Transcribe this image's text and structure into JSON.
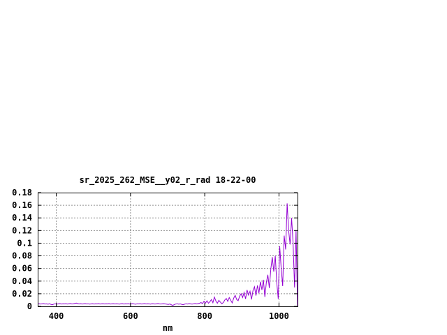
{
  "chart_data": {
    "type": "line",
    "title": "sr_2025_262_MSE__y02_r_rad 18-22-00",
    "xlabel": "nm",
    "ylabel": "",
    "xlim": [
      350,
      1050
    ],
    "ylim": [
      0,
      0.18
    ],
    "xticks": [
      400,
      600,
      800,
      1000
    ],
    "xtick_labels": [
      "400",
      "600",
      "800",
      "1000"
    ],
    "yticks": [
      0,
      0.02,
      0.04,
      0.06,
      0.08,
      0.1,
      0.12,
      0.14,
      0.16,
      0.18
    ],
    "ytick_labels": [
      "0",
      "0.02",
      "0.04",
      "0.06",
      "0.08",
      "0.1",
      "0.12",
      "0.14",
      "0.16",
      "0.18"
    ],
    "grid": true,
    "legend": "none",
    "line_color": "#9400d3",
    "grid_color": "#909090",
    "axis_color": "#000000",
    "background": "#ffffff",
    "x_start": 350,
    "x_step": 4,
    "y": [
      0.004,
      0.0043,
      0.0038,
      0.0041,
      0.0044,
      0.0037,
      0.004,
      0.0035,
      0.0042,
      0.003,
      0.0027,
      0.0038,
      0.0042,
      0.0036,
      0.0041,
      0.0044,
      0.0038,
      0.0042,
      0.004,
      0.0043,
      0.0037,
      0.0041,
      0.0045,
      0.0039,
      0.0042,
      0.0047,
      0.0052,
      0.0044,
      0.004,
      0.0043,
      0.0038,
      0.0041,
      0.0044,
      0.0039,
      0.0042,
      0.0036,
      0.004,
      0.0043,
      0.0038,
      0.0042,
      0.004,
      0.0044,
      0.0037,
      0.0041,
      0.0043,
      0.0039,
      0.0042,
      0.004,
      0.0044,
      0.0038,
      0.0041,
      0.0043,
      0.0039,
      0.0042,
      0.004,
      0.0036,
      0.0041,
      0.0044,
      0.0038,
      0.0042,
      0.004,
      0.0043,
      0.0037,
      0.0041,
      0.0044,
      0.0039,
      0.0035,
      0.0042,
      0.004,
      0.0043,
      0.0038,
      0.0041,
      0.0044,
      0.0039,
      0.0042,
      0.004,
      0.0036,
      0.0043,
      0.0041,
      0.0038,
      0.0042,
      0.0045,
      0.004,
      0.0037,
      0.0041,
      0.0043,
      0.0039,
      0.0035,
      0.003,
      0.0038,
      0.0025,
      0.0016,
      0.0028,
      0.0038,
      0.0042,
      0.0035,
      0.004,
      0.0032,
      0.0027,
      0.0036,
      0.0042,
      0.0038,
      0.0044,
      0.004,
      0.0036,
      0.0042,
      0.0046,
      0.004,
      0.0044,
      0.005,
      0.006,
      0.0045,
      0.008,
      0.0052,
      0.0088,
      0.005,
      0.0075,
      0.0108,
      0.0058,
      0.0148,
      0.0085,
      0.005,
      0.0095,
      0.0068,
      0.0042,
      0.006,
      0.01,
      0.0125,
      0.008,
      0.014,
      0.0095,
      0.0055,
      0.013,
      0.0175,
      0.011,
      0.009,
      0.016,
      0.02,
      0.014,
      0.022,
      0.012,
      0.026,
      0.018,
      0.024,
      0.011,
      0.025,
      0.031,
      0.017,
      0.033,
      0.021,
      0.039,
      0.026,
      0.042,
      0.015,
      0.038,
      0.05,
      0.029,
      0.059,
      0.078,
      0.055,
      0.08,
      0.038,
      0.012,
      0.095,
      0.06,
      0.032,
      0.112,
      0.09,
      0.163,
      0.12,
      0.098,
      0.14,
      0.1,
      0.03,
      0.12,
      0.001
    ]
  }
}
